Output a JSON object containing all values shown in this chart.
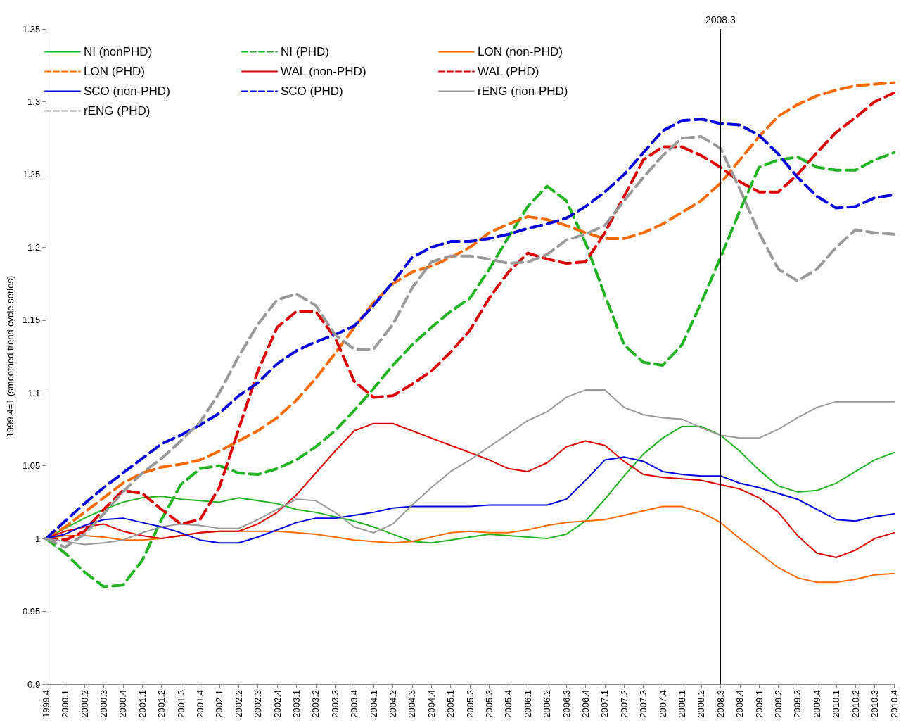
{
  "chart_data": {
    "type": "line",
    "ylabel": "1999.4=1 (smoothed trend-cycle series)",
    "categories": [
      "1999.4",
      "2000.1",
      "2000.2",
      "2000.3",
      "2000.4",
      "2001.1",
      "2001.2",
      "2001.3",
      "2001.4",
      "2002.1",
      "2002.2",
      "2002.3",
      "2002.4",
      "2003.1",
      "2003.2",
      "2003.3",
      "2003.4",
      "2004.1",
      "2004.2",
      "2004.3",
      "2004.4",
      "2005.1",
      "2005.2",
      "2005.3",
      "2005.4",
      "2006.1",
      "2006.2",
      "2006.3",
      "2006.4",
      "2007.1",
      "2007.2",
      "2007.3",
      "2007.4",
      "2008.1",
      "2008.2",
      "2008.3",
      "2008.4",
      "2009.1",
      "2009.2",
      "2009.3",
      "2009.4",
      "2010.1",
      "2010.2",
      "2010.3",
      "2010.4"
    ],
    "ylim": [
      0.9,
      1.35
    ],
    "yticks": [
      0.9,
      0.95,
      1,
      1.05,
      1.1,
      1.15,
      1.2,
      1.25,
      1.3,
      1.35
    ],
    "grid": false,
    "legend": "top left",
    "marker": "none",
    "ref_lines": [
      {
        "axis": "x",
        "value": "2008.3",
        "label": "2008.3",
        "color": "#000000"
      }
    ],
    "series": [
      {
        "name": "NI (nonPHD)",
        "color": "#22b322",
        "line_style": "solid",
        "values": [
          1.0,
          1.007,
          1.014,
          1.02,
          1.025,
          1.028,
          1.029,
          1.027,
          1.026,
          1.025,
          1.028,
          1.026,
          1.024,
          1.02,
          1.018,
          1.015,
          1.012,
          1.008,
          1.003,
          0.998,
          0.997,
          0.999,
          1.001,
          1.003,
          1.002,
          1.001,
          1.0,
          1.003,
          1.012,
          1.027,
          1.043,
          1.058,
          1.069,
          1.077,
          1.077,
          1.071,
          1.06,
          1.047,
          1.036,
          1.032,
          1.033,
          1.038,
          1.046,
          1.054,
          1.059
        ]
      },
      {
        "name": "NI (PHD)",
        "color": "#22b322",
        "line_style": "dashed",
        "values": [
          1.0,
          0.99,
          0.977,
          0.967,
          0.968,
          0.985,
          1.013,
          1.037,
          1.048,
          1.05,
          1.045,
          1.044,
          1.048,
          1.054,
          1.063,
          1.074,
          1.088,
          1.103,
          1.119,
          1.133,
          1.145,
          1.156,
          1.165,
          1.185,
          1.207,
          1.228,
          1.242,
          1.232,
          1.203,
          1.167,
          1.133,
          1.121,
          1.119,
          1.133,
          1.162,
          1.193,
          1.225,
          1.255,
          1.26,
          1.262,
          1.255,
          1.253,
          1.253,
          1.26,
          1.265
        ]
      },
      {
        "name": "LON (non-PHD)",
        "color": "#ff6a00",
        "line_style": "solid",
        "values": [
          1.0,
          1.002,
          1.002,
          1.001,
          0.999,
          0.999,
          1.0,
          1.002,
          1.004,
          1.005,
          1.005,
          1.005,
          1.005,
          1.004,
          1.003,
          1.001,
          0.999,
          0.998,
          0.997,
          0.998,
          1.001,
          1.004,
          1.005,
          1.004,
          1.004,
          1.006,
          1.009,
          1.011,
          1.012,
          1.013,
          1.016,
          1.019,
          1.022,
          1.022,
          1.018,
          1.011,
          1.0,
          0.99,
          0.98,
          0.973,
          0.97,
          0.97,
          0.972,
          0.975,
          0.976
        ]
      },
      {
        "name": "LON (PHD)",
        "color": "#ff6a00",
        "line_style": "dashed",
        "values": [
          1.0,
          1.008,
          1.018,
          1.028,
          1.038,
          1.045,
          1.049,
          1.051,
          1.054,
          1.06,
          1.067,
          1.074,
          1.083,
          1.095,
          1.11,
          1.127,
          1.145,
          1.162,
          1.175,
          1.183,
          1.187,
          1.193,
          1.2,
          1.21,
          1.216,
          1.221,
          1.219,
          1.215,
          1.21,
          1.206,
          1.206,
          1.21,
          1.216,
          1.224,
          1.232,
          1.244,
          1.26,
          1.276,
          1.29,
          1.298,
          1.304,
          1.308,
          1.311,
          1.312,
          1.313
        ]
      },
      {
        "name": "WAL (non-PHD)",
        "color": "#dd0000",
        "line_style": "solid",
        "values": [
          1.0,
          1.005,
          1.008,
          1.01,
          1.005,
          1.002,
          1.0,
          1.002,
          1.004,
          1.005,
          1.005,
          1.01,
          1.018,
          1.03,
          1.045,
          1.06,
          1.074,
          1.079,
          1.079,
          1.074,
          1.069,
          1.064,
          1.059,
          1.054,
          1.048,
          1.046,
          1.052,
          1.063,
          1.067,
          1.064,
          1.053,
          1.044,
          1.042,
          1.041,
          1.04,
          1.037,
          1.034,
          1.028,
          1.018,
          1.002,
          0.99,
          0.987,
          0.992,
          1.0,
          1.004
        ]
      },
      {
        "name": "WAL (PHD)",
        "color": "#dd0000",
        "line_style": "dashed",
        "values": [
          1.0,
          0.999,
          1.005,
          1.02,
          1.033,
          1.031,
          1.02,
          1.01,
          1.013,
          1.035,
          1.075,
          1.115,
          1.145,
          1.156,
          1.156,
          1.138,
          1.108,
          1.097,
          1.098,
          1.106,
          1.115,
          1.128,
          1.143,
          1.165,
          1.183,
          1.196,
          1.192,
          1.189,
          1.19,
          1.21,
          1.235,
          1.26,
          1.269,
          1.269,
          1.263,
          1.255,
          1.245,
          1.238,
          1.238,
          1.25,
          1.265,
          1.279,
          1.289,
          1.3,
          1.306
        ]
      },
      {
        "name": "SCO (non-PHD)",
        "color": "#0000dd",
        "line_style": "solid",
        "values": [
          1.0,
          1.003,
          1.009,
          1.013,
          1.014,
          1.011,
          1.008,
          1.004,
          0.999,
          0.997,
          0.997,
          1.001,
          1.006,
          1.011,
          1.014,
          1.014,
          1.016,
          1.018,
          1.021,
          1.022,
          1.022,
          1.022,
          1.022,
          1.023,
          1.023,
          1.023,
          1.023,
          1.027,
          1.04,
          1.054,
          1.056,
          1.053,
          1.046,
          1.044,
          1.043,
          1.043,
          1.038,
          1.035,
          1.031,
          1.027,
          1.02,
          1.013,
          1.012,
          1.015,
          1.017
        ]
      },
      {
        "name": "SCO (PHD)",
        "color": "#0000dd",
        "line_style": "dashed",
        "values": [
          1.0,
          1.012,
          1.024,
          1.035,
          1.045,
          1.055,
          1.065,
          1.071,
          1.078,
          1.086,
          1.098,
          1.107,
          1.12,
          1.129,
          1.135,
          1.14,
          1.146,
          1.16,
          1.176,
          1.193,
          1.2,
          1.204,
          1.204,
          1.206,
          1.209,
          1.213,
          1.216,
          1.22,
          1.228,
          1.238,
          1.25,
          1.265,
          1.28,
          1.287,
          1.288,
          1.285,
          1.284,
          1.277,
          1.264,
          1.248,
          1.235,
          1.227,
          1.228,
          1.234,
          1.236
        ]
      },
      {
        "name": "rENG (non-PHD)",
        "color": "#999999",
        "line_style": "solid",
        "values": [
          1.0,
          0.998,
          0.996,
          0.997,
          0.999,
          1.004,
          1.008,
          1.01,
          1.009,
          1.007,
          1.007,
          1.013,
          1.02,
          1.027,
          1.026,
          1.018,
          1.008,
          1.004,
          1.01,
          1.023,
          1.035,
          1.046,
          1.054,
          1.063,
          1.072,
          1.081,
          1.087,
          1.097,
          1.102,
          1.102,
          1.09,
          1.085,
          1.083,
          1.082,
          1.076,
          1.071,
          1.069,
          1.069,
          1.075,
          1.083,
          1.09,
          1.094,
          1.094,
          1.094,
          1.094
        ]
      },
      {
        "name": "rENG (PHD)",
        "color": "#999999",
        "line_style": "dashed",
        "values": [
          1.0,
          0.994,
          1.003,
          1.017,
          1.032,
          1.045,
          1.055,
          1.067,
          1.08,
          1.1,
          1.125,
          1.147,
          1.164,
          1.168,
          1.16,
          1.14,
          1.13,
          1.13,
          1.147,
          1.172,
          1.19,
          1.194,
          1.194,
          1.192,
          1.189,
          1.19,
          1.195,
          1.205,
          1.209,
          1.215,
          1.232,
          1.248,
          1.263,
          1.275,
          1.276,
          1.268,
          1.24,
          1.21,
          1.185,
          1.177,
          1.185,
          1.2,
          1.212,
          1.21,
          1.209
        ]
      }
    ]
  }
}
